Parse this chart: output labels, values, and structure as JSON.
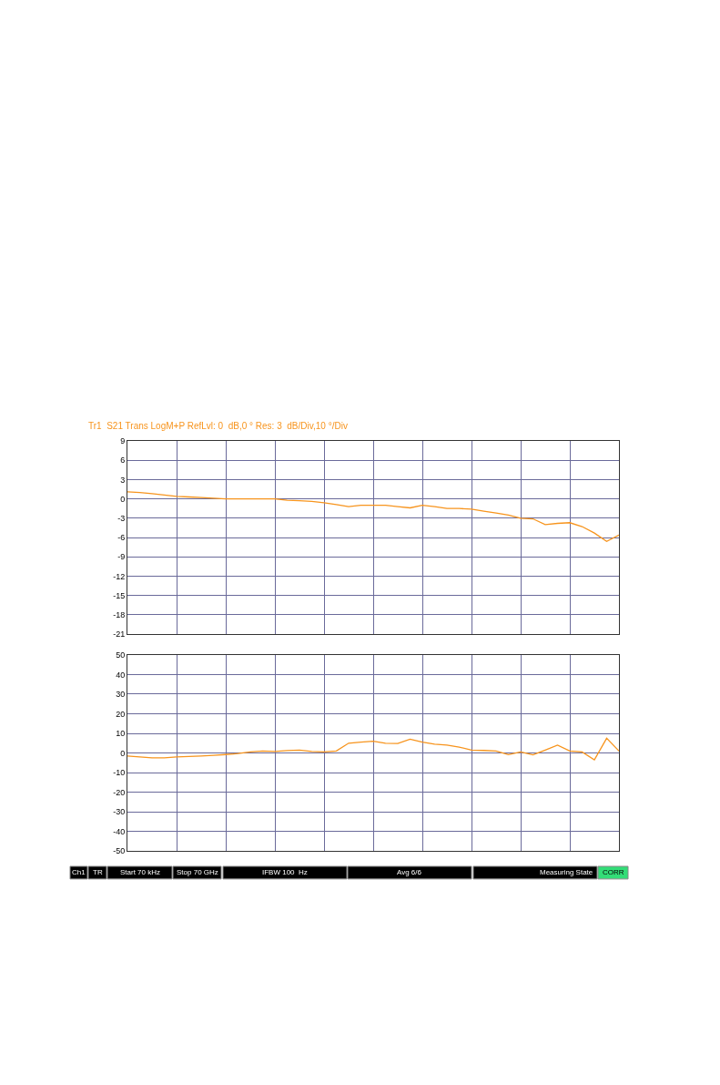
{
  "chart_data": [
    {
      "type": "line",
      "title": "Tr1  S21 Trans LogM+P RefLvl: 0  dB,0 ° Res: 3  dB/Div,10 °/Div",
      "categories": [
        null,
        null,
        null,
        null,
        null,
        null,
        null,
        null,
        null,
        null,
        null,
        null,
        null,
        null,
        null,
        null,
        null,
        null,
        null,
        null,
        null,
        null,
        null,
        null,
        null,
        null,
        null,
        null,
        null,
        null,
        null,
        null,
        null,
        null,
        null,
        null,
        null,
        null,
        null,
        null,
        null
      ],
      "series": [
        {
          "color": "#f7941d",
          "values": [
            1.1,
            1.0,
            0.8,
            0.6,
            0.4,
            0.3,
            0.2,
            0.1,
            0,
            0,
            0,
            0,
            0,
            -0.2,
            -0.3,
            -0.4,
            -0.6,
            -0.9,
            -1.2,
            -1.0,
            -1.0,
            -1.0,
            -1.2,
            -1.4,
            -1.0,
            -1.2,
            -1.5,
            -1.5,
            -1.6,
            -1.9,
            -2.2,
            -2.5,
            -3.0,
            -3.1,
            -4.0,
            -3.8,
            -3.7,
            -4.3,
            -5.3,
            -6.6,
            -5.6
          ]
        }
      ],
      "ylim": [
        -21,
        9
      ],
      "yticks": [
        9,
        6,
        3,
        0,
        -3,
        -6,
        -9,
        -12,
        -15,
        -18,
        -21
      ],
      "grid": true,
      "tick_labels": "y"
    },
    {
      "type": "line",
      "categories": [
        null,
        null,
        null,
        null,
        null,
        null,
        null,
        null,
        null,
        null,
        null,
        null,
        null,
        null,
        null,
        null,
        null,
        null,
        null,
        null,
        null,
        null,
        null,
        null,
        null,
        null,
        null,
        null,
        null,
        null,
        null,
        null,
        null,
        null,
        null,
        null,
        null,
        null,
        null,
        null,
        null
      ],
      "series": [
        {
          "color": "#f7941d",
          "values": [
            -1.5,
            -2.0,
            -2.5,
            -2.5,
            -2.0,
            -1.8,
            -1.5,
            -1.2,
            -0.8,
            -0.3,
            0.5,
            1.0,
            0.8,
            1.2,
            1.5,
            0.8,
            0.5,
            1.0,
            5.0,
            5.5,
            6.0,
            5.0,
            4.8,
            7.0,
            5.5,
            4.5,
            4.0,
            3.0,
            1.5,
            1.3,
            1.0,
            -0.8,
            0.5,
            -1.0,
            1.5,
            4.0,
            1.0,
            0.5,
            -3.5,
            7.5,
            1.0
          ]
        }
      ],
      "ylim": [
        -50,
        50
      ],
      "yticks": [
        50,
        40,
        30,
        20,
        10,
        0,
        -10,
        -20,
        -30,
        -40,
        -50
      ],
      "grid": true,
      "tick_labels": "y",
      "annotations": [
        "Ch1",
        "TR",
        "Start 70 kHz",
        "Stop 70 GHz",
        "IFBW 100  Hz",
        "Avg 6/6",
        "Measuring State",
        "CORR"
      ]
    }
  ]
}
